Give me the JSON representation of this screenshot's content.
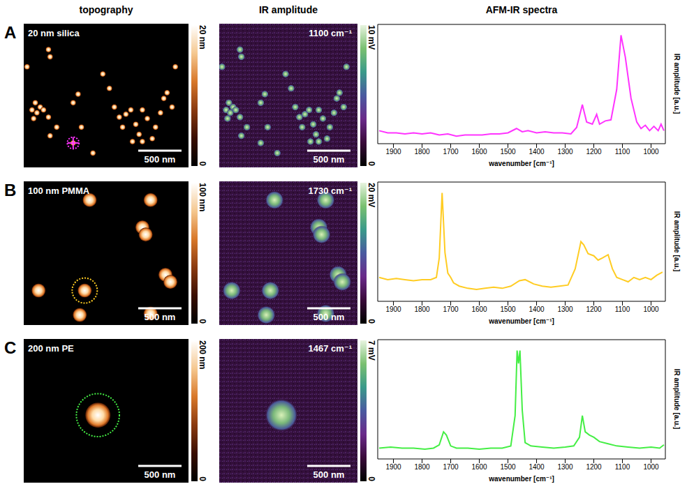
{
  "column_titles": [
    "topography",
    "IR amplitude",
    "AFM-IR spectra"
  ],
  "panels": [
    {
      "letter": "A",
      "sample": "20 nm silica",
      "topography": {
        "colorbar": {
          "range": [
            0,
            20
          ],
          "ticks": [
            0,
            {
              "value": 20,
              "label": "20 nm"
            }
          ]
        },
        "scale_bar": "500 nm"
      },
      "ir_amplitude": {
        "wavenumber": "1100 cm⁻¹",
        "colorbar": {
          "range": [
            0,
            10
          ],
          "ticks": [
            0,
            {
              "value": 10,
              "label": "10 mV"
            }
          ]
        },
        "scale_bar": "500 nm"
      }
    },
    {
      "letter": "B",
      "sample": "100 nm PMMA",
      "topography": {
        "colorbar": {
          "range": [
            0,
            100
          ],
          "ticks": [
            0,
            {
              "value": 100,
              "label": "100 nm"
            }
          ]
        },
        "scale_bar": "500 nm"
      },
      "ir_amplitude": {
        "wavenumber": "1730 cm⁻¹",
        "colorbar": {
          "range": [
            0,
            20
          ],
          "ticks": [
            0,
            {
              "value": 20,
              "label": "20 mV"
            }
          ]
        },
        "scale_bar": "500 nm"
      }
    },
    {
      "letter": "C",
      "sample": "200 nm PE",
      "topography": {
        "colorbar": {
          "range": [
            0,
            200
          ],
          "ticks": [
            0,
            {
              "value": 200,
              "label": "200 nm"
            }
          ]
        },
        "scale_bar": "500 nm"
      },
      "ir_amplitude": {
        "wavenumber": "1467 cm⁻¹",
        "colorbar": {
          "range": [
            0,
            7
          ],
          "ticks": [
            0,
            {
              "value": 7,
              "label": "7 mV"
            }
          ]
        },
        "scale_bar": "500 nm"
      }
    }
  ],
  "chart_data": [
    {
      "type": "line",
      "x_label": "wavenumber [cm⁻¹]",
      "y_label": "IR amplitude [a.u.]",
      "color": "#ff33ff",
      "xlim": [
        1955,
        950
      ],
      "xticks": [
        1900,
        1800,
        1700,
        1600,
        1500,
        1400,
        1300,
        1200,
        1100,
        1000
      ],
      "ylim": [
        0,
        1.1
      ],
      "tick_labels": "x",
      "x": [
        1950,
        1920,
        1890,
        1860,
        1830,
        1800,
        1770,
        1740,
        1710,
        1680,
        1650,
        1620,
        1590,
        1560,
        1530,
        1500,
        1470,
        1450,
        1430,
        1400,
        1370,
        1340,
        1310,
        1280,
        1260,
        1240,
        1225,
        1205,
        1190,
        1180,
        1160,
        1140,
        1120,
        1105,
        1090,
        1070,
        1050,
        1035,
        1020,
        1005,
        990,
        975,
        965,
        955
      ],
      "values": [
        0.12,
        0.1,
        0.1,
        0.09,
        0.1,
        0.09,
        0.1,
        0.08,
        0.09,
        0.07,
        0.08,
        0.08,
        0.08,
        0.09,
        0.09,
        0.1,
        0.14,
        0.11,
        0.12,
        0.1,
        0.11,
        0.1,
        0.1,
        0.09,
        0.15,
        0.36,
        0.2,
        0.18,
        0.27,
        0.18,
        0.21,
        0.22,
        0.5,
        1.0,
        0.8,
        0.42,
        0.2,
        0.14,
        0.17,
        0.12,
        0.16,
        0.12,
        0.18,
        0.12
      ]
    },
    {
      "type": "line",
      "x_label": "wavenumber [cm⁻¹]",
      "y_label": "IR amplitude [a.u.]",
      "color": "#ffcc22",
      "xlim": [
        1955,
        950
      ],
      "xticks": [
        1900,
        1800,
        1700,
        1600,
        1500,
        1400,
        1300,
        1200,
        1100,
        1000
      ],
      "ylim": [
        0,
        1.1
      ],
      "tick_labels": "x",
      "x": [
        1950,
        1920,
        1890,
        1860,
        1830,
        1800,
        1770,
        1750,
        1740,
        1730,
        1720,
        1710,
        1700,
        1690,
        1670,
        1640,
        1610,
        1580,
        1550,
        1520,
        1490,
        1460,
        1440,
        1410,
        1380,
        1350,
        1320,
        1290,
        1265,
        1245,
        1235,
        1220,
        1200,
        1185,
        1170,
        1150,
        1135,
        1120,
        1100,
        1080,
        1060,
        1040,
        1020,
        1000,
        980,
        960
      ],
      "values": [
        0.22,
        0.2,
        0.21,
        0.2,
        0.19,
        0.2,
        0.2,
        0.22,
        0.4,
        1.0,
        0.45,
        0.26,
        0.22,
        0.17,
        0.14,
        0.12,
        0.11,
        0.12,
        0.13,
        0.12,
        0.14,
        0.19,
        0.2,
        0.16,
        0.14,
        0.13,
        0.14,
        0.15,
        0.3,
        0.55,
        0.52,
        0.44,
        0.42,
        0.38,
        0.4,
        0.43,
        0.3,
        0.22,
        0.2,
        0.18,
        0.22,
        0.2,
        0.22,
        0.2,
        0.24,
        0.27
      ]
    },
    {
      "type": "line",
      "x_label": "wavenumber [cm⁻¹]",
      "y_label": "IR amplitude [a.u.]",
      "color": "#44ee44",
      "xlim": [
        1955,
        950
      ],
      "xticks": [
        1900,
        1800,
        1700,
        1600,
        1500,
        1400,
        1300,
        1200,
        1100,
        1000
      ],
      "ylim": [
        0,
        1.1
      ],
      "tick_labels": "x",
      "x": [
        1950,
        1910,
        1870,
        1830,
        1790,
        1760,
        1740,
        1725,
        1715,
        1700,
        1680,
        1640,
        1600,
        1560,
        1520,
        1490,
        1475,
        1468,
        1463,
        1458,
        1450,
        1440,
        1420,
        1380,
        1340,
        1300,
        1270,
        1250,
        1240,
        1230,
        1215,
        1200,
        1180,
        1150,
        1120,
        1080,
        1040,
        1000,
        970,
        955
      ],
      "values": [
        0.1,
        0.11,
        0.1,
        0.1,
        0.09,
        0.1,
        0.13,
        0.25,
        0.22,
        0.12,
        0.1,
        0.1,
        0.09,
        0.1,
        0.1,
        0.12,
        0.4,
        1.0,
        0.88,
        1.0,
        0.45,
        0.15,
        0.12,
        0.11,
        0.1,
        0.11,
        0.12,
        0.2,
        0.4,
        0.25,
        0.22,
        0.2,
        0.16,
        0.14,
        0.12,
        0.11,
        0.1,
        0.11,
        0.1,
        0.13
      ]
    }
  ]
}
